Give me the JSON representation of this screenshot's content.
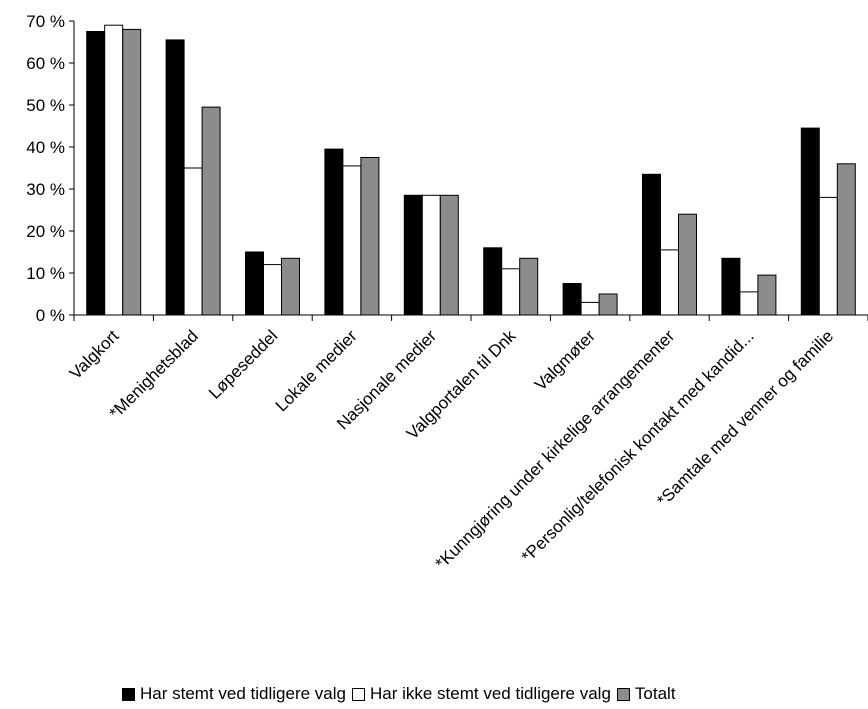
{
  "chart_data": {
    "type": "bar",
    "title": "",
    "xlabel": "",
    "ylabel": "",
    "ylim": [
      0,
      70
    ],
    "y_ticks": [
      "0 %",
      "10 %",
      "20 %",
      "30 %",
      "40 %",
      "50 %",
      "60 %",
      "70 %"
    ],
    "y_tick_values": [
      0,
      10,
      20,
      30,
      40,
      50,
      60,
      70
    ],
    "grid": false,
    "legend_position": "bottom",
    "categories": [
      "Valgkort",
      "*Menighetsblad",
      "Løpeseddel",
      "Lokale medier",
      "Nasjonale medier",
      "Valgportalen til Dnk",
      "Valgmøter",
      "*Kunngjøring under kirkelige arrangementer",
      "*Personlig/telefonisk kontakt med kandid...",
      "*Samtale med venner og familie"
    ],
    "series": [
      {
        "name": "Har stemt ved tidligere valg",
        "color": "#000000",
        "values": [
          67.5,
          65.5,
          15,
          39.5,
          28.5,
          16,
          7.5,
          33.5,
          13.5,
          44.5
        ]
      },
      {
        "name": "Har ikke stemt ved tidligere valg",
        "color": "#ffffff",
        "values": [
          69,
          35,
          12,
          35.5,
          28.5,
          11,
          3,
          15.5,
          5.5,
          28
        ]
      },
      {
        "name": "Totalt",
        "color": "#8c8c8c",
        "values": [
          68,
          49.5,
          13.5,
          37.5,
          28.5,
          13.5,
          5,
          24,
          9.5,
          36
        ]
      }
    ]
  }
}
